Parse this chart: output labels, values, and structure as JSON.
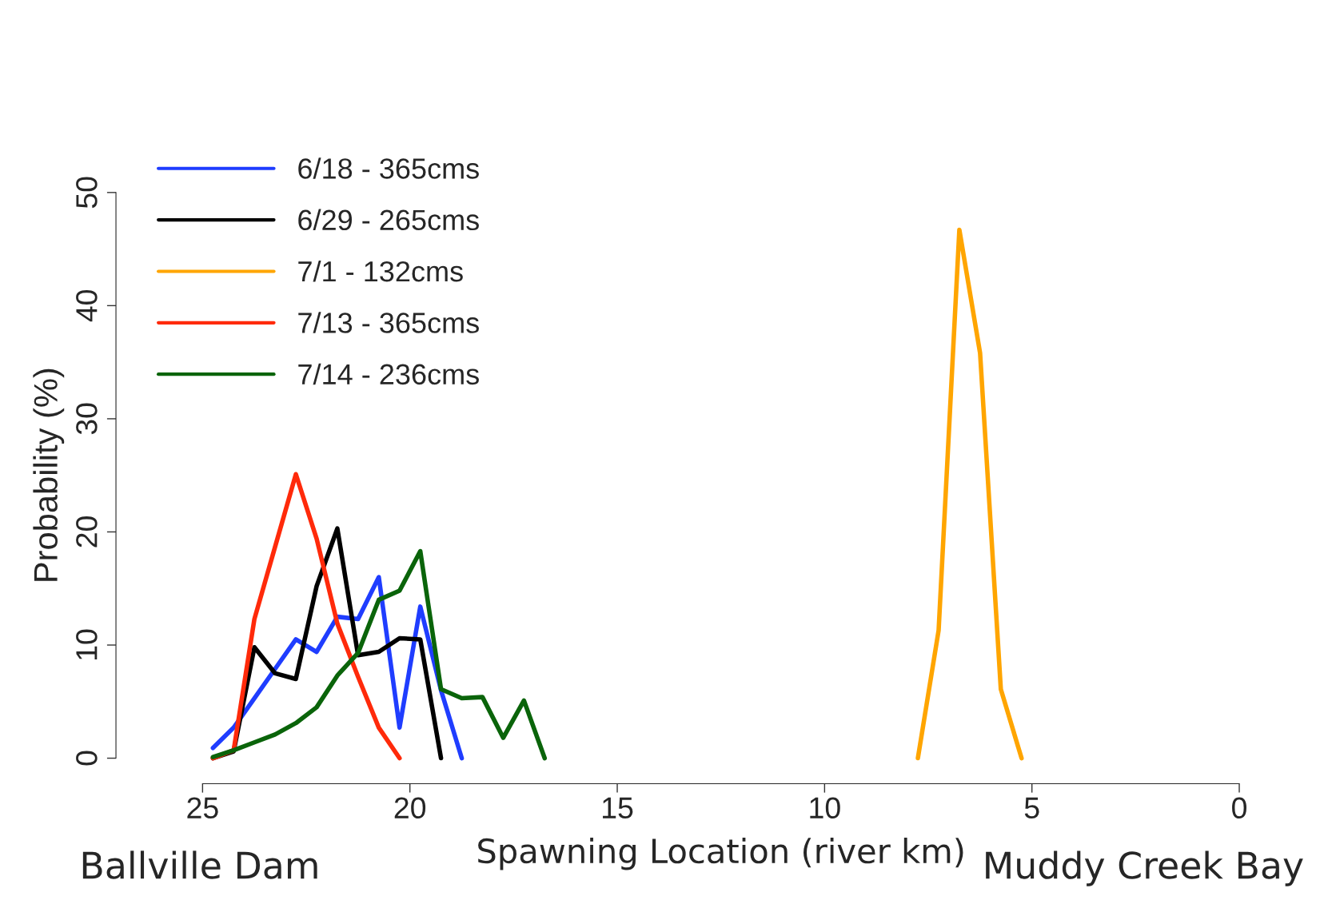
{
  "chart_data": {
    "type": "line",
    "xlabel": "Spawning Location (river km)",
    "ylabel": "Probability (%)",
    "xlim": [
      25,
      0
    ],
    "ylim": [
      0,
      50
    ],
    "xticks": [
      25,
      20,
      15,
      10,
      5,
      0
    ],
    "yticks": [
      0,
      10,
      20,
      30,
      40,
      50
    ],
    "grid": false,
    "legend": "top left",
    "line_style": "solid",
    "marker": "none",
    "annotations": [
      "Ballville Dam",
      "Muddy Creek Bay"
    ],
    "series": [
      {
        "name": "6/18 - 365cms",
        "color": "#1f3dff",
        "x": [
          24.75,
          24.25,
          23.75,
          23.25,
          22.75,
          22.25,
          21.75,
          21.25,
          20.75,
          20.25,
          19.75,
          19.25,
          18.75
        ],
        "values": [
          0.9,
          2.7,
          5.3,
          7.9,
          10.5,
          9.4,
          12.5,
          12.3,
          16.0,
          2.7,
          13.4,
          6.0,
          0
        ]
      },
      {
        "name": "6/29 - 265cms",
        "color": "#000000",
        "x": [
          24.75,
          24.25,
          23.75,
          23.25,
          22.75,
          22.25,
          21.75,
          21.25,
          20.75,
          20.25,
          19.75,
          19.25
        ],
        "values": [
          0,
          0.6,
          9.8,
          7.5,
          7.0,
          15.2,
          20.3,
          9.1,
          9.4,
          10.6,
          10.5,
          0
        ]
      },
      {
        "name": "7/1 - 132cms",
        "color": "#ffa500",
        "x": [
          7.75,
          7.25,
          6.75,
          6.25,
          5.75,
          5.25
        ],
        "values": [
          0,
          11.3,
          46.7,
          35.8,
          6.1,
          0
        ]
      },
      {
        "name": "7/13 - 365cms",
        "color": "#ff2a0a",
        "x": [
          24.75,
          24.25,
          23.75,
          23.25,
          22.75,
          22.25,
          21.75,
          21.25,
          20.75,
          20.25
        ],
        "values": [
          0,
          0.7,
          12.3,
          18.7,
          25.1,
          19.4,
          11.9,
          7.2,
          2.7,
          0
        ]
      },
      {
        "name": "7/14 - 236cms",
        "color": "#0a640a",
        "x": [
          24.75,
          24.25,
          23.75,
          23.25,
          22.75,
          22.25,
          21.75,
          21.25,
          20.75,
          20.25,
          19.75,
          19.25,
          18.75,
          18.25,
          17.75,
          17.25,
          16.75
        ],
        "values": [
          0.1,
          0.7,
          1.4,
          2.1,
          3.1,
          4.5,
          7.3,
          9.3,
          14.0,
          14.8,
          18.3,
          6.1,
          5.3,
          5.4,
          1.8,
          5.1,
          0
        ]
      }
    ]
  }
}
